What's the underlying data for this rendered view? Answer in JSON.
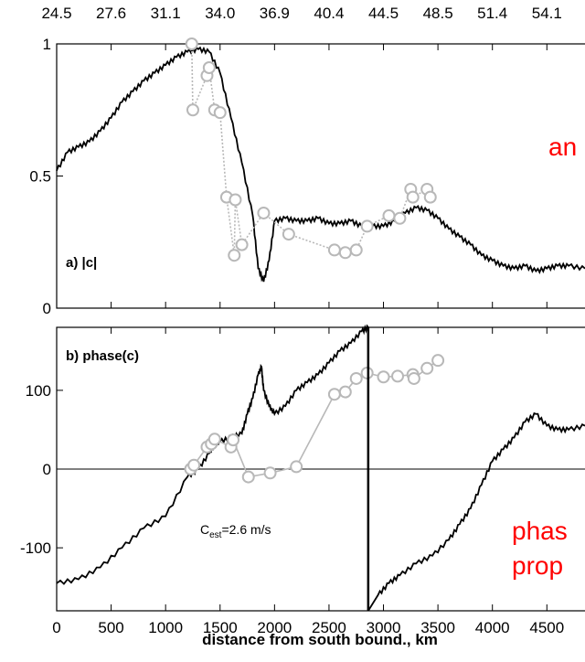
{
  "top_axis": {
    "ticks": [
      "24.5",
      "27.6",
      "31.1",
      "34.0",
      "36.9",
      "40.4",
      "44.5",
      "48.5",
      "51.4",
      "54.1"
    ]
  },
  "overlay_text": {
    "top_right_fragment": "an",
    "bottom_right_line1": "phas",
    "bottom_right_line2": "prop"
  },
  "chart_data": [
    {
      "type": "line",
      "panel_label": "a) |c|",
      "xlim": [
        0,
        4850
      ],
      "ylim": [
        0,
        1
      ],
      "yticks": [
        "0",
        "0.5",
        "1"
      ],
      "series": [
        {
          "color": "#000000",
          "x": [
            0,
            100,
            200,
            300,
            400,
            500,
            600,
            700,
            800,
            900,
            1000,
            1100,
            1200,
            1300,
            1400,
            1500,
            1600,
            1700,
            1800,
            1850,
            1900,
            1950,
            2000,
            2100,
            2200,
            2300,
            2400,
            2500,
            2600,
            2700,
            2800,
            2900,
            3000,
            3100,
            3200,
            3300,
            3400,
            3500,
            3600,
            3700,
            3800,
            3900,
            4000,
            4100,
            4200,
            4300,
            4400,
            4500,
            4600,
            4700,
            4850
          ],
          "values": [
            0.52,
            0.59,
            0.61,
            0.63,
            0.67,
            0.72,
            0.78,
            0.82,
            0.86,
            0.89,
            0.92,
            0.95,
            0.97,
            0.98,
            0.97,
            0.89,
            0.72,
            0.55,
            0.35,
            0.15,
            0.1,
            0.18,
            0.33,
            0.34,
            0.33,
            0.33,
            0.34,
            0.32,
            0.32,
            0.33,
            0.31,
            0.31,
            0.31,
            0.33,
            0.36,
            0.38,
            0.37,
            0.34,
            0.3,
            0.27,
            0.24,
            0.2,
            0.18,
            0.16,
            0.15,
            0.16,
            0.14,
            0.15,
            0.16,
            0.16,
            0.15
          ]
        },
        {
          "color": "#b8b8b8",
          "markers": true,
          "x": [
            1240,
            1250,
            1380,
            1400,
            1450,
            1500,
            1560,
            1630,
            1640,
            1700,
            1900,
            2130,
            2550,
            2650,
            2750,
            2850,
            3050,
            3150,
            3250,
            3270,
            3400,
            3430
          ],
          "values": [
            1.0,
            0.75,
            0.88,
            0.91,
            0.75,
            0.74,
            0.42,
            0.2,
            0.41,
            0.24,
            0.36,
            0.28,
            0.22,
            0.21,
            0.22,
            0.31,
            0.35,
            0.34,
            0.45,
            0.42,
            0.45,
            0.42
          ]
        }
      ]
    },
    {
      "type": "line",
      "panel_label": "b) phase(c)",
      "annotation": "C",
      "annotation_sub": "est",
      "annotation_tail": "=2.6 m/s",
      "xlim": [
        0,
        4850
      ],
      "ylim": [
        -180,
        180
      ],
      "yticks": [
        "100",
        "0",
        "-100"
      ],
      "xticks": [
        "0",
        "500",
        "1000",
        "1500",
        "2000",
        "2500",
        "3000",
        "3500",
        "4000",
        "4500"
      ],
      "xlabel": "distance from south bound., km",
      "series": [
        {
          "color": "#000000",
          "x": [
            0,
            200,
            400,
            600,
            800,
            1000,
            1200,
            1300,
            1400,
            1450,
            1500,
            1600,
            1700,
            1750,
            1800,
            1850,
            1880,
            1900,
            1950,
            2000,
            2100,
            2200,
            2300,
            2400,
            2500,
            2600,
            2700,
            2800,
            2860,
            2860,
            2950,
            3050,
            3150,
            3300,
            3450,
            3600,
            3700,
            3800,
            3900,
            4000,
            4100,
            4200,
            4300,
            4400,
            4500,
            4600,
            4700,
            4850
          ],
          "values": [
            -145,
            -140,
            -125,
            -100,
            -75,
            -60,
            -10,
            0,
            20,
            30,
            35,
            40,
            45,
            70,
            90,
            120,
            130,
            100,
            80,
            70,
            80,
            100,
            110,
            120,
            135,
            150,
            160,
            175,
            180,
            -180,
            -160,
            -145,
            -135,
            -120,
            -110,
            -90,
            -70,
            -50,
            -20,
            10,
            25,
            40,
            60,
            70,
            55,
            50,
            50,
            55
          ]
        },
        {
          "color": "#b8b8b8",
          "markers": true,
          "x": [
            1230,
            1260,
            1380,
            1420,
            1450,
            1600,
            1620,
            1760,
            1960,
            2200,
            2550,
            2650,
            2750,
            2850,
            3000,
            3130,
            3270,
            3280,
            3400,
            3500
          ],
          "values": [
            0,
            5,
            28,
            32,
            38,
            28,
            37,
            -10,
            -5,
            3,
            95,
            98,
            115,
            122,
            117,
            118,
            120,
            115,
            128,
            138
          ]
        }
      ]
    }
  ]
}
